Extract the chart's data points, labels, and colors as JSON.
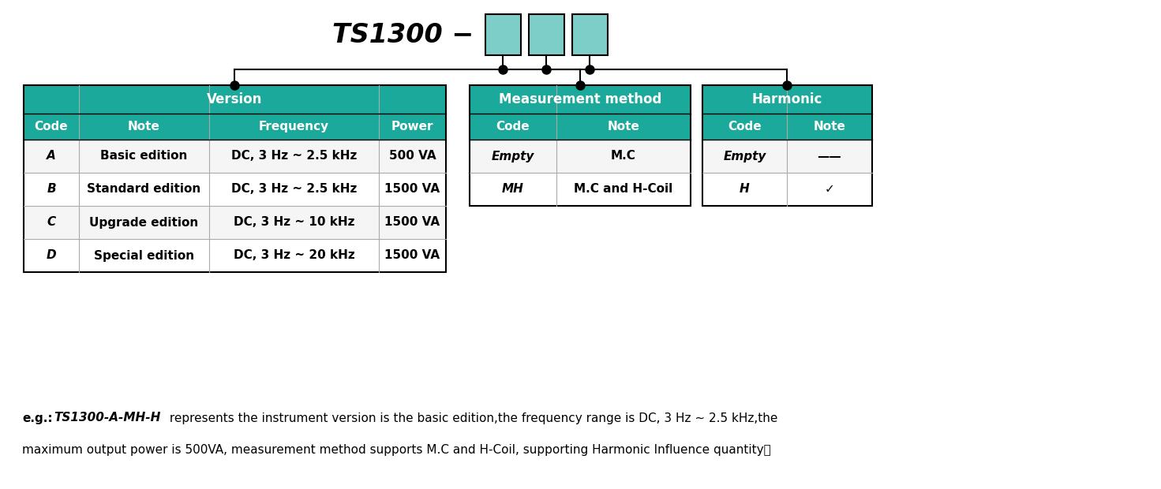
{
  "background": "#ffffff",
  "teal": "#1AA99A",
  "teal_box": "#7DCDC8",
  "white": "#ffffff",
  "black": "#000000",
  "gray_line": "#aaaaaa",
  "row_odd": "#f5f5f5",
  "version_header": "Version",
  "meas_header": "Measurement method",
  "harmonic_header": "Harmonic",
  "col_headers_version": [
    "Code",
    "Note",
    "Frequency",
    "Power"
  ],
  "col_headers_meas": [
    "Code",
    "Note"
  ],
  "col_headers_harmonic": [
    "Code",
    "Note"
  ],
  "version_data": [
    [
      "A",
      "Basic edition",
      "DC, 3 Hz ~ 2.5 kHz",
      "500 VA"
    ],
    [
      "B",
      "Standard edition",
      "DC, 3 Hz ~ 2.5 kHz",
      "1500 VA"
    ],
    [
      "C",
      "Upgrade edition",
      "DC, 3 Hz ~ 10 kHz",
      "1500 VA"
    ],
    [
      "D",
      "Special edition",
      "DC, 3 Hz ~ 20 kHz",
      "1500 VA"
    ]
  ],
  "meas_data": [
    [
      "Empty",
      "M.C"
    ],
    [
      "MH",
      "M.C and H-Coil"
    ]
  ],
  "harmonic_data": [
    [
      "Empty",
      "——"
    ],
    [
      "H",
      "✓"
    ]
  ],
  "footer_bold_prefix": "e.g.:",
  "footer_bold_italic": "TS1300-A-MH-H",
  "footer_normal_1": " represents the instrument version is the basic edition,the frequency range is DC, 3 Hz ∼ 2.5 kHz,the",
  "footer_line2": "maximum output power is 500VA, measurement method supports M.C and H-Coil, supporting Harmonic Influence quantity。"
}
